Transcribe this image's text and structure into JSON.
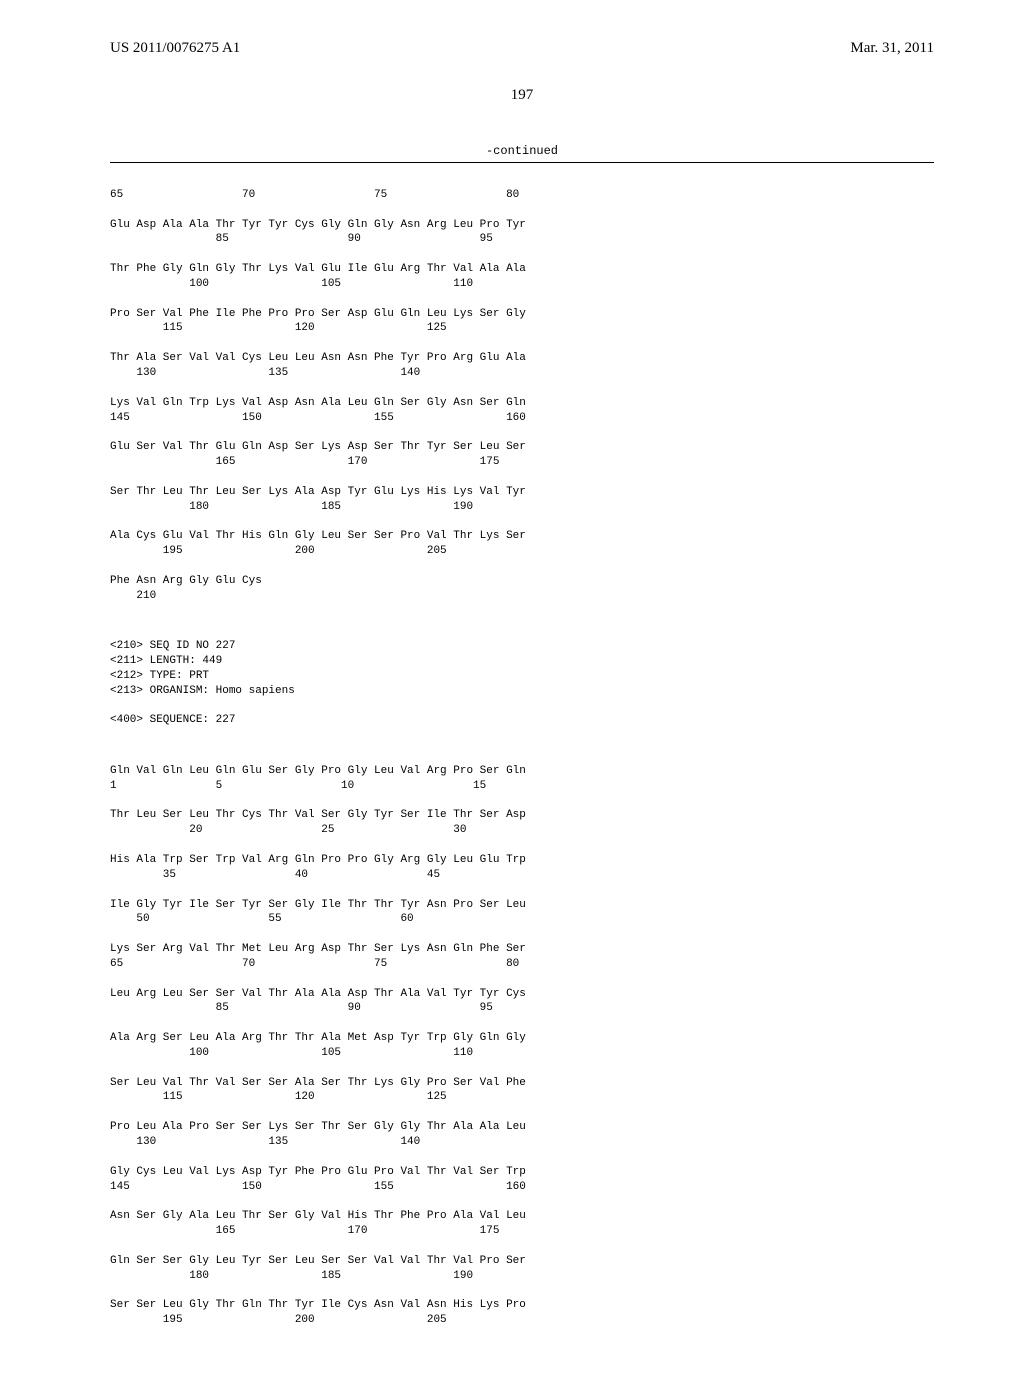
{
  "header": {
    "doc_id": "US 2011/0076275 A1",
    "date": "Mar. 31, 2011"
  },
  "page_number": "197",
  "continued_label": "-continued",
  "seq1_rows": [
    {
      "aa": "",
      "nums": "65                  70                  75                  80"
    },
    {
      "aa": "Glu Asp Ala Ala Thr Tyr Tyr Cys Gly Gln Gly Asn Arg Leu Pro Tyr",
      "nums": "                85                  90                  95"
    },
    {
      "aa": "Thr Phe Gly Gln Gly Thr Lys Val Glu Ile Glu Arg Thr Val Ala Ala",
      "nums": "            100                 105                 110"
    },
    {
      "aa": "Pro Ser Val Phe Ile Phe Pro Pro Ser Asp Glu Gln Leu Lys Ser Gly",
      "nums": "        115                 120                 125"
    },
    {
      "aa": "Thr Ala Ser Val Val Cys Leu Leu Asn Asn Phe Tyr Pro Arg Glu Ala",
      "nums": "    130                 135                 140"
    },
    {
      "aa": "Lys Val Gln Trp Lys Val Asp Asn Ala Leu Gln Ser Gly Asn Ser Gln",
      "nums": "145                 150                 155                 160"
    },
    {
      "aa": "Glu Ser Val Thr Glu Gln Asp Ser Lys Asp Ser Thr Tyr Ser Leu Ser",
      "nums": "                165                 170                 175"
    },
    {
      "aa": "Ser Thr Leu Thr Leu Ser Lys Ala Asp Tyr Glu Lys His Lys Val Tyr",
      "nums": "            180                 185                 190"
    },
    {
      "aa": "Ala Cys Glu Val Thr His Gln Gly Leu Ser Ser Pro Val Thr Lys Ser",
      "nums": "        195                 200                 205"
    },
    {
      "aa": "Phe Asn Arg Gly Glu Cys",
      "nums": "    210"
    }
  ],
  "seq_header": [
    "<210> SEQ ID NO 227",
    "<211> LENGTH: 449",
    "<212> TYPE: PRT",
    "<213> ORGANISM: Homo sapiens",
    "",
    "<400> SEQUENCE: 227"
  ],
  "seq2_rows": [
    {
      "aa": "Gln Val Gln Leu Gln Glu Ser Gly Pro Gly Leu Val Arg Pro Ser Gln",
      "nums": "1               5                  10                  15"
    },
    {
      "aa": "Thr Leu Ser Leu Thr Cys Thr Val Ser Gly Tyr Ser Ile Thr Ser Asp",
      "nums": "            20                  25                  30"
    },
    {
      "aa": "His Ala Trp Ser Trp Val Arg Gln Pro Pro Gly Arg Gly Leu Glu Trp",
      "nums": "        35                  40                  45"
    },
    {
      "aa": "Ile Gly Tyr Ile Ser Tyr Ser Gly Ile Thr Thr Tyr Asn Pro Ser Leu",
      "nums": "    50                  55                  60"
    },
    {
      "aa": "Lys Ser Arg Val Thr Met Leu Arg Asp Thr Ser Lys Asn Gln Phe Ser",
      "nums": "65                  70                  75                  80"
    },
    {
      "aa": "Leu Arg Leu Ser Ser Val Thr Ala Ala Asp Thr Ala Val Tyr Tyr Cys",
      "nums": "                85                  90                  95"
    },
    {
      "aa": "Ala Arg Ser Leu Ala Arg Thr Thr Ala Met Asp Tyr Trp Gly Gln Gly",
      "nums": "            100                 105                 110"
    },
    {
      "aa": "Ser Leu Val Thr Val Ser Ser Ala Ser Thr Lys Gly Pro Ser Val Phe",
      "nums": "        115                 120                 125"
    },
    {
      "aa": "Pro Leu Ala Pro Ser Ser Lys Ser Thr Ser Gly Gly Thr Ala Ala Leu",
      "nums": "    130                 135                 140"
    },
    {
      "aa": "Gly Cys Leu Val Lys Asp Tyr Phe Pro Glu Pro Val Thr Val Ser Trp",
      "nums": "145                 150                 155                 160"
    },
    {
      "aa": "Asn Ser Gly Ala Leu Thr Ser Gly Val His Thr Phe Pro Ala Val Leu",
      "nums": "                165                 170                 175"
    },
    {
      "aa": "Gln Ser Ser Gly Leu Tyr Ser Leu Ser Ser Val Val Thr Val Pro Ser",
      "nums": "            180                 185                 190"
    },
    {
      "aa": "Ser Ser Leu Gly Thr Gln Thr Tyr Ile Cys Asn Val Asn His Lys Pro",
      "nums": "        195                 200                 205"
    }
  ]
}
